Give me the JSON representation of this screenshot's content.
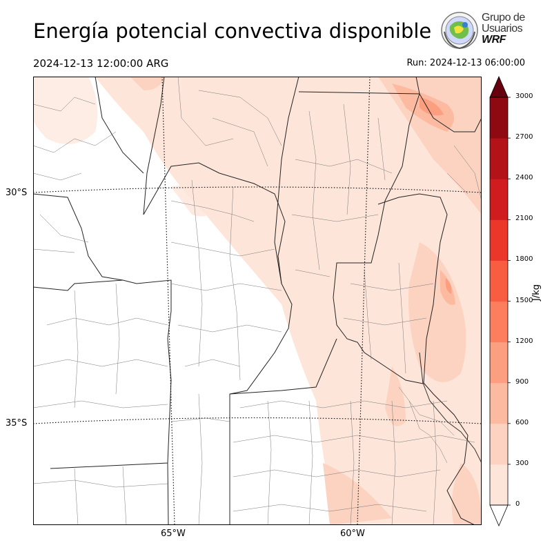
{
  "header": {
    "title": "Energía potencial convectiva disponible",
    "valid_time": "2024-12-13 12:00:00 ARG",
    "run_time": "Run: 2024-12-13 06:00:00"
  },
  "logo": {
    "line1": "Grupo de",
    "line2": "Usuarios",
    "line3": "WRF"
  },
  "map": {
    "lat_labels": [
      "30°S",
      "35°S"
    ],
    "lon_labels": [
      "65°W",
      "60°W"
    ]
  },
  "colorbar": {
    "unit": "J/kg",
    "ticks": [
      "3000",
      "2700",
      "2400",
      "2100",
      "1800",
      "1500",
      "1200",
      "900",
      "600",
      "300",
      "0"
    ],
    "colors": [
      "#fee5d9",
      "#fcd3c1",
      "#fcbba1",
      "#fc9e80",
      "#fb7f5f",
      "#f85d42",
      "#eb372a",
      "#d01c1f",
      "#b21218",
      "#8e0912",
      "#67000d"
    ]
  }
}
